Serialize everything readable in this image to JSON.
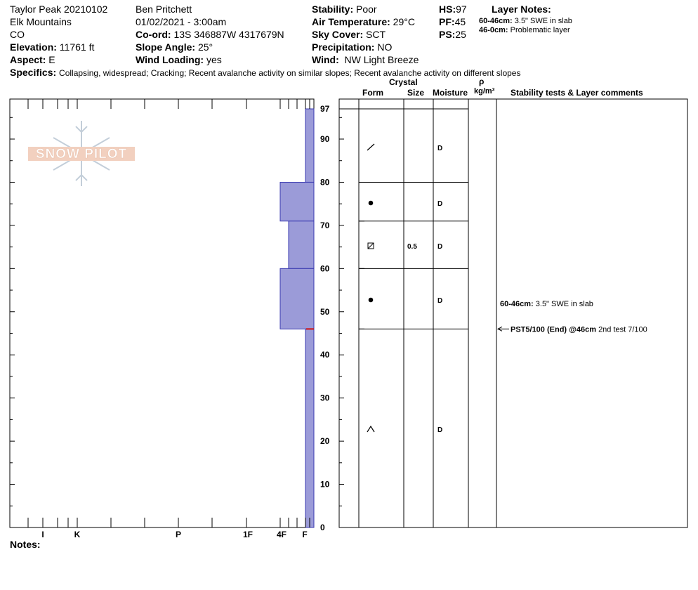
{
  "header": {
    "col1": [
      "Taylor Peak 20210102",
      "Elk Mountains",
      "CO"
    ],
    "elevation_label": "Elevation:",
    "elevation_value": "11761 ft",
    "aspect_label": "Aspect:",
    "aspect_value": "E",
    "observer": "Ben Pritchett",
    "datetime": "01/02/2021 - 3:00am",
    "coord_label": "Co-ord:",
    "coord_value": "13S 346887W 4317679N",
    "slope_label": "Slope Angle:",
    "slope_value": "25°",
    "wind_loading_label": "Wind Loading:",
    "wind_loading_value": "yes",
    "stability_label": "Stability:",
    "stability_value": "Poor",
    "air_temp_label": "Air Temperature:",
    "air_temp_value": "29°C",
    "sky_label": "Sky Cover:",
    "sky_value": "SCT",
    "precip_label": "Precipitation:",
    "precip_value": "NO",
    "wind_label": "Wind:",
    "wind_value": "NW Light Breeze",
    "hs_label": "HS:",
    "hs_value": "97",
    "pf_label": "PF:",
    "pf_value": "45",
    "ps_label": "PS:",
    "ps_value": "25",
    "layer_notes_title": "Layer Notes:",
    "layer_notes": [
      {
        "range": "60-46cm:",
        "text": "3.5\" SWE in slab"
      },
      {
        "range": "46-0cm:",
        "text": "Problematic layer"
      }
    ],
    "specifics_label": "Specifics:",
    "specifics_value": "Collapsing, widespread;  Cracking;  Recent avalanche activity on similar slopes;  Recent avalanche activity on different slopes"
  },
  "logo_text": "SNOW PILOT",
  "notes_label": "Notes:",
  "table_headers": {
    "crystal": "Crystal",
    "form": "Form",
    "size": "Size",
    "moisture": "Moisture",
    "rho": "ρ",
    "density_unit": "kg/m³",
    "comments": "Stability tests & Layer comments"
  },
  "chart_data": {
    "type": "bar",
    "orientation": "horizontal",
    "y_axis": {
      "label": "",
      "range": [
        0,
        97
      ],
      "ticks": [
        0,
        10,
        20,
        30,
        40,
        50,
        60,
        70,
        80,
        90,
        97
      ]
    },
    "x_axis": {
      "label": "",
      "ticks": [
        "I",
        "K",
        "P",
        "1F",
        "4F",
        "F"
      ],
      "reversed": true
    },
    "hardness_index": {
      "F": 1,
      "4F": 2,
      "1F": 3,
      "P": 4,
      "K": 5,
      "I": 6
    },
    "layers": [
      {
        "top": 97,
        "bottom": 80,
        "hardness": "F",
        "form": "/",
        "size": "",
        "moisture": "D"
      },
      {
        "top": 80,
        "bottom": 71,
        "hardness": "4F",
        "form": "●",
        "size": "",
        "moisture": "D"
      },
      {
        "top": 71,
        "bottom": 60,
        "hardness": "F+",
        "form": "⊠",
        "size": "0.5",
        "moisture": "D"
      },
      {
        "top": 60,
        "bottom": 46,
        "hardness": "4F",
        "form": "●",
        "size": "",
        "moisture": "D"
      },
      {
        "top": 46,
        "bottom": 0,
        "hardness": "F",
        "form": "^",
        "size": "",
        "moisture": "D"
      }
    ],
    "comments": [
      {
        "depth": 53,
        "bold": "60-46cm:",
        "text": "3.5\" SWE in slab",
        "arrow": false
      },
      {
        "depth": 46,
        "bold": "PST5/100 (End) @46cm",
        "text": "2nd test 7/100",
        "arrow": true
      }
    ],
    "marker_depth": 46
  }
}
